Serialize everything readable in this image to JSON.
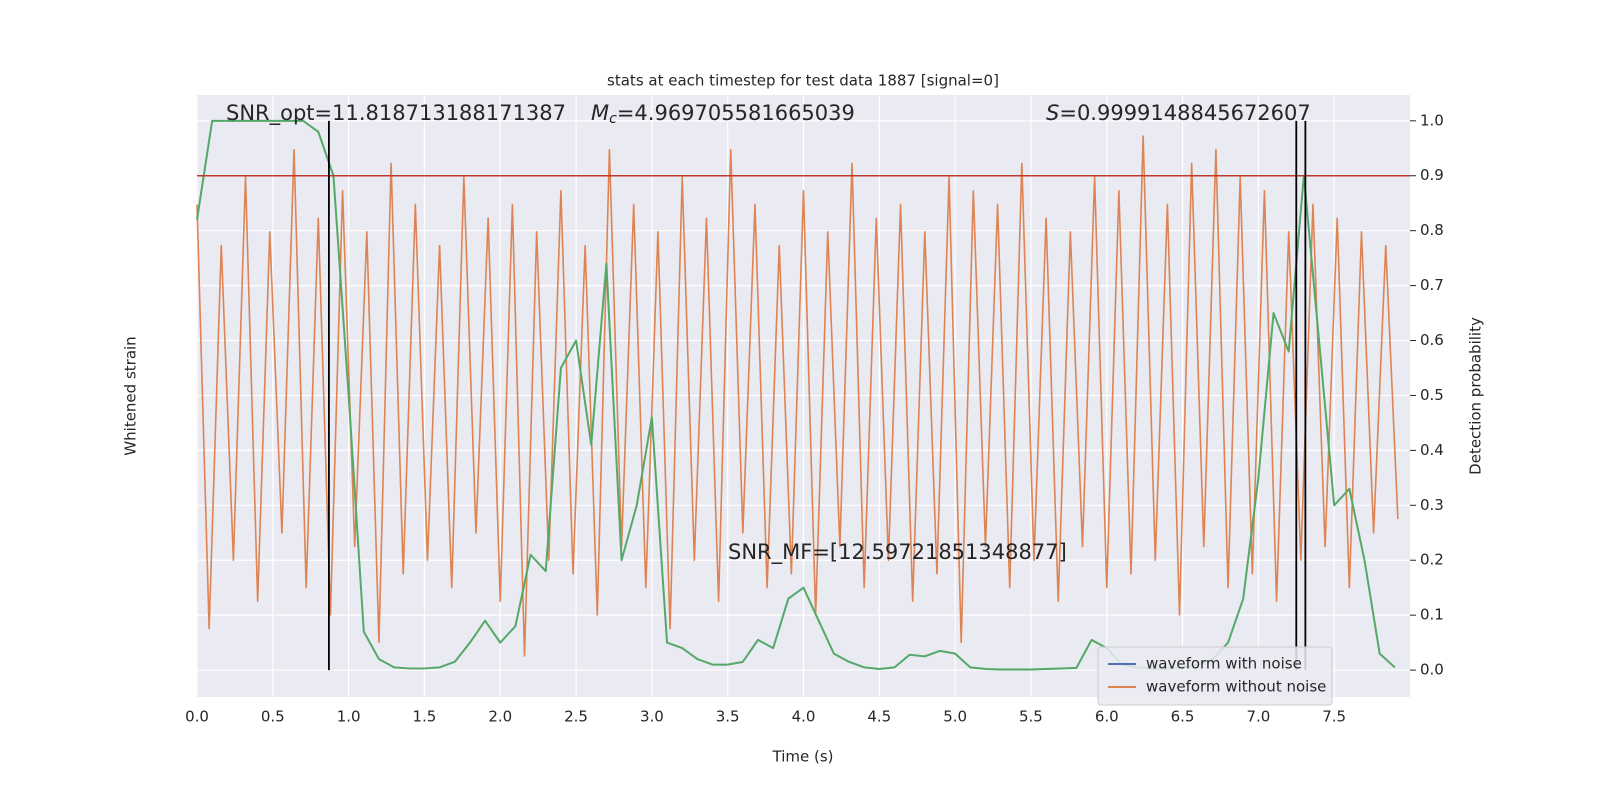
{
  "chart_data": {
    "type": "line",
    "title": "stats at each timestep for test data 1887 [signal=0]",
    "xlabel": "Time (s)",
    "ylabel": "Whitened strain",
    "y2label": "Detection probability",
    "annotations": {
      "snr_opt": "SNR_opt=11.818713188171387",
      "mc_symbol": "M",
      "mc_sub": "c",
      "mc_value": "=4.969705581665039",
      "s_symbol": "S",
      "s_value": "=0.9999148845672607",
      "snr_mf": "SNR_MF=[12.59721851348877]"
    },
    "xlim": [
      0,
      8.0
    ],
    "xticks": [
      {
        "value": 0,
        "label": "0.0"
      },
      0.5,
      {
        "value": 1,
        "label": "1.0"
      },
      1.5,
      {
        "value": 2,
        "label": "2.0"
      },
      2.5,
      {
        "value": 3,
        "label": "3.0"
      },
      3.5,
      {
        "value": 4,
        "label": "4.0"
      },
      4.5,
      {
        "value": 5,
        "label": "5.0"
      },
      5.5,
      {
        "value": 6,
        "label": "6.0"
      },
      6.5,
      {
        "value": 7,
        "label": "7.0"
      },
      7.5
    ],
    "ylim": [
      -1.1,
      1.1
    ],
    "y2lim": [
      -0.049,
      1.047
    ],
    "y2ticks": [
      {
        "value": 0,
        "label": "0.0"
      },
      0.1,
      0.2,
      0.3,
      0.4,
      0.5,
      0.6,
      0.7,
      0.8,
      0.9,
      {
        "value": 1,
        "label": "1.0"
      }
    ],
    "grid": true,
    "threshold": 0.9,
    "threshold_color": "#c0392b",
    "vlines": [
      0.87,
      7.25,
      7.31
    ],
    "vline_color": "#000000",
    "legend": "lower right",
    "series": [
      {
        "name": "waveform with noise",
        "color": "#4c72b0"
      },
      {
        "name": "waveform without noise",
        "color": "#dd8452",
        "x": [
          0,
          0.08,
          0.16,
          0.24,
          0.32,
          0.4,
          0.48,
          0.56,
          0.64,
          0.72,
          0.8,
          0.88,
          0.96,
          1.04,
          1.12,
          1.2,
          1.28,
          1.36,
          1.44,
          1.52,
          1.6,
          1.68,
          1.76,
          1.84,
          1.92,
          2,
          2.08,
          2.16,
          2.24,
          2.32,
          2.4,
          2.48,
          2.56,
          2.64,
          2.72,
          2.8,
          2.88,
          2.96,
          3.04,
          3.12,
          3.2,
          3.28,
          3.36,
          3.44,
          3.52,
          3.6,
          3.68,
          3.76,
          3.84,
          3.92,
          4,
          4.08,
          4.16,
          4.24,
          4.32,
          4.4,
          4.48,
          4.56,
          4.64,
          4.72,
          4.8,
          4.88,
          4.96,
          5.04,
          5.12,
          5.2,
          5.28,
          5.36,
          5.44,
          5.52,
          5.6,
          5.68,
          5.76,
          5.84,
          5.92,
          6,
          6.08,
          6.16,
          6.24,
          6.32,
          6.4,
          6.48,
          6.56,
          6.64,
          6.72,
          6.8,
          6.88,
          6.96,
          7.04,
          7.12,
          7.2,
          7.28,
          7.36,
          7.44,
          7.52,
          7.6,
          7.68,
          7.76,
          7.84,
          7.92
        ],
        "values": [
          0.7,
          -0.85,
          0.55,
          -0.6,
          0.8,
          -0.75,
          0.6,
          -0.5,
          0.9,
          -0.7,
          0.65,
          -0.8,
          0.75,
          -0.55,
          0.6,
          -0.9,
          0.85,
          -0.65,
          0.7,
          -0.6,
          0.55,
          -0.7,
          0.8,
          -0.5,
          0.65,
          -0.75,
          0.7,
          -0.95,
          0.6,
          -0.6,
          0.75,
          -0.65,
          0.55,
          -0.8,
          0.9,
          -0.55,
          0.7,
          -0.7,
          0.6,
          -0.85,
          0.8,
          -0.6,
          0.65,
          -0.75,
          0.9,
          -0.5,
          0.7,
          -0.7,
          0.55,
          -0.65,
          0.75,
          -0.8,
          0.6,
          -0.55,
          0.85,
          -0.7,
          0.65,
          -0.6,
          0.7,
          -0.75,
          0.6,
          -0.65,
          0.8,
          -0.9,
          0.75,
          -0.55,
          0.7,
          -0.7,
          0.85,
          -0.6,
          0.65,
          -0.75,
          0.6,
          -0.55,
          0.8,
          -0.7,
          0.75,
          -0.65,
          0.95,
          -0.6,
          0.7,
          -0.8,
          0.85,
          -0.55,
          0.9,
          -0.7,
          0.8,
          -0.65,
          0.75,
          -0.75,
          0.6,
          -0.6,
          0.7,
          -0.55,
          0.65,
          -0.7,
          0.6,
          -0.5,
          0.55,
          -0.45
        ]
      },
      {
        "name": "Detection probability",
        "color": "#55a868",
        "axis": "y2",
        "x": [
          0,
          0.1,
          0.2,
          0.3,
          0.4,
          0.5,
          0.6,
          0.7,
          0.8,
          0.9,
          1,
          1.1,
          1.2,
          1.3,
          1.4,
          1.5,
          1.6,
          1.7,
          1.8,
          1.9,
          2,
          2.1,
          2.2,
          2.3,
          2.4,
          2.5,
          2.6,
          2.7,
          2.8,
          2.9,
          3,
          3.1,
          3.2,
          3.3,
          3.4,
          3.5,
          3.6,
          3.7,
          3.8,
          3.9,
          4,
          4.1,
          4.2,
          4.3,
          4.4,
          4.5,
          4.6,
          4.7,
          4.8,
          4.9,
          5,
          5.1,
          5.2,
          5.3,
          5.4,
          5.5,
          5.6,
          5.7,
          5.8,
          5.9,
          6,
          6.1,
          6.2,
          6.3,
          6.4,
          6.5,
          6.6,
          6.7,
          6.8,
          6.9,
          7,
          7.1,
          7.2,
          7.3,
          7.4,
          7.5,
          7.6,
          7.7,
          7.8,
          7.9
        ],
        "values": [
          0.82,
          1.0,
          1.0,
          1.0,
          1.0,
          1.0,
          1.0,
          1.0,
          0.98,
          0.9,
          0.5,
          0.07,
          0.02,
          0.005,
          0.003,
          0.003,
          0.005,
          0.015,
          0.05,
          0.09,
          0.05,
          0.08,
          0.21,
          0.18,
          0.55,
          0.6,
          0.41,
          0.74,
          0.2,
          0.3,
          0.46,
          0.05,
          0.04,
          0.02,
          0.01,
          0.01,
          0.015,
          0.055,
          0.04,
          0.13,
          0.15,
          0.09,
          0.03,
          0.015,
          0.005,
          0.002,
          0.005,
          0.028,
          0.025,
          0.035,
          0.03,
          0.005,
          0.002,
          0.001,
          0.001,
          0.001,
          0.002,
          0.003,
          0.004,
          0.055,
          0.04,
          0.01,
          0.005,
          0.003,
          0.003,
          0.005,
          0.01,
          0.02,
          0.05,
          0.13,
          0.35,
          0.65,
          0.58,
          0.9,
          0.6,
          0.3,
          0.33,
          0.2,
          0.03,
          0.005
        ]
      }
    ]
  }
}
